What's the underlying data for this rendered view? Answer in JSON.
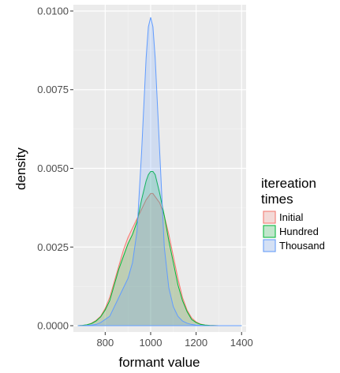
{
  "chart_data": {
    "type": "area",
    "title": "",
    "xlabel": "formant value",
    "ylabel": "density",
    "xlim": [
      660,
      1420
    ],
    "ylim": [
      -0.0002,
      0.0102
    ],
    "x_ticks": [
      800,
      1000,
      1200,
      1400
    ],
    "x_tick_labels": [
      "800",
      "1000",
      "1200",
      "1400"
    ],
    "y_ticks": [
      0,
      0.0025,
      0.005,
      0.0075,
      0.01
    ],
    "y_tick_labels": [
      "0.0000",
      "0.0025",
      "0.0050",
      "0.0075",
      "0.0100"
    ],
    "grid": true,
    "legend": {
      "title_line1": "itereation",
      "title_line2": "times",
      "placement": "right"
    },
    "x": [
      680,
      700,
      720,
      740,
      760,
      780,
      800,
      820,
      840,
      860,
      880,
      900,
      920,
      940,
      960,
      980,
      990,
      1000,
      1010,
      1020,
      1040,
      1060,
      1080,
      1100,
      1120,
      1140,
      1160,
      1180,
      1200,
      1220,
      1240,
      1260,
      1300,
      1350,
      1400
    ],
    "series": [
      {
        "name": "Initial",
        "color": "#F8766D",
        "fill": "#F8766D",
        "values": [
          0.0,
          1e-05,
          3e-05,
          8e-05,
          0.00017,
          0.0003,
          0.00055,
          0.0009,
          0.0014,
          0.0019,
          0.0024,
          0.0028,
          0.0031,
          0.0034,
          0.0037,
          0.004,
          0.0041,
          0.0042,
          0.0042,
          0.0041,
          0.0039,
          0.0035,
          0.0029,
          0.0022,
          0.0015,
          0.0009,
          0.0005,
          0.00025,
          0.00012,
          5e-05,
          2e-05,
          1e-05,
          0.0,
          0.0,
          0.0
        ]
      },
      {
        "name": "Hundred",
        "color": "#00BA38",
        "fill": "#00BA38",
        "values": [
          0.0,
          1e-05,
          3e-05,
          7e-05,
          0.00015,
          0.00028,
          0.0005,
          0.0008,
          0.0013,
          0.0018,
          0.0022,
          0.0026,
          0.0029,
          0.0033,
          0.004,
          0.0046,
          0.0048,
          0.0049,
          0.0049,
          0.0048,
          0.0042,
          0.0035,
          0.0027,
          0.002,
          0.0013,
          0.0008,
          0.00045,
          0.0002,
          0.0001,
          4e-05,
          2e-05,
          1e-05,
          0.0,
          0.0,
          0.0
        ]
      },
      {
        "name": "Thousand",
        "color": "#619CFF",
        "fill": "#619CFF",
        "values": [
          0.0,
          0.0,
          1e-05,
          2e-05,
          4e-05,
          0.0001,
          0.0002,
          0.0003,
          0.0006,
          0.0009,
          0.0012,
          0.0015,
          0.002,
          0.003,
          0.0055,
          0.0085,
          0.0095,
          0.0098,
          0.0095,
          0.0085,
          0.0055,
          0.0025,
          0.0012,
          0.0006,
          0.0003,
          0.00015,
          8e-05,
          4e-05,
          2e-05,
          1e-05,
          0.0,
          0.0,
          0.0,
          0.0,
          0.0
        ]
      }
    ]
  }
}
